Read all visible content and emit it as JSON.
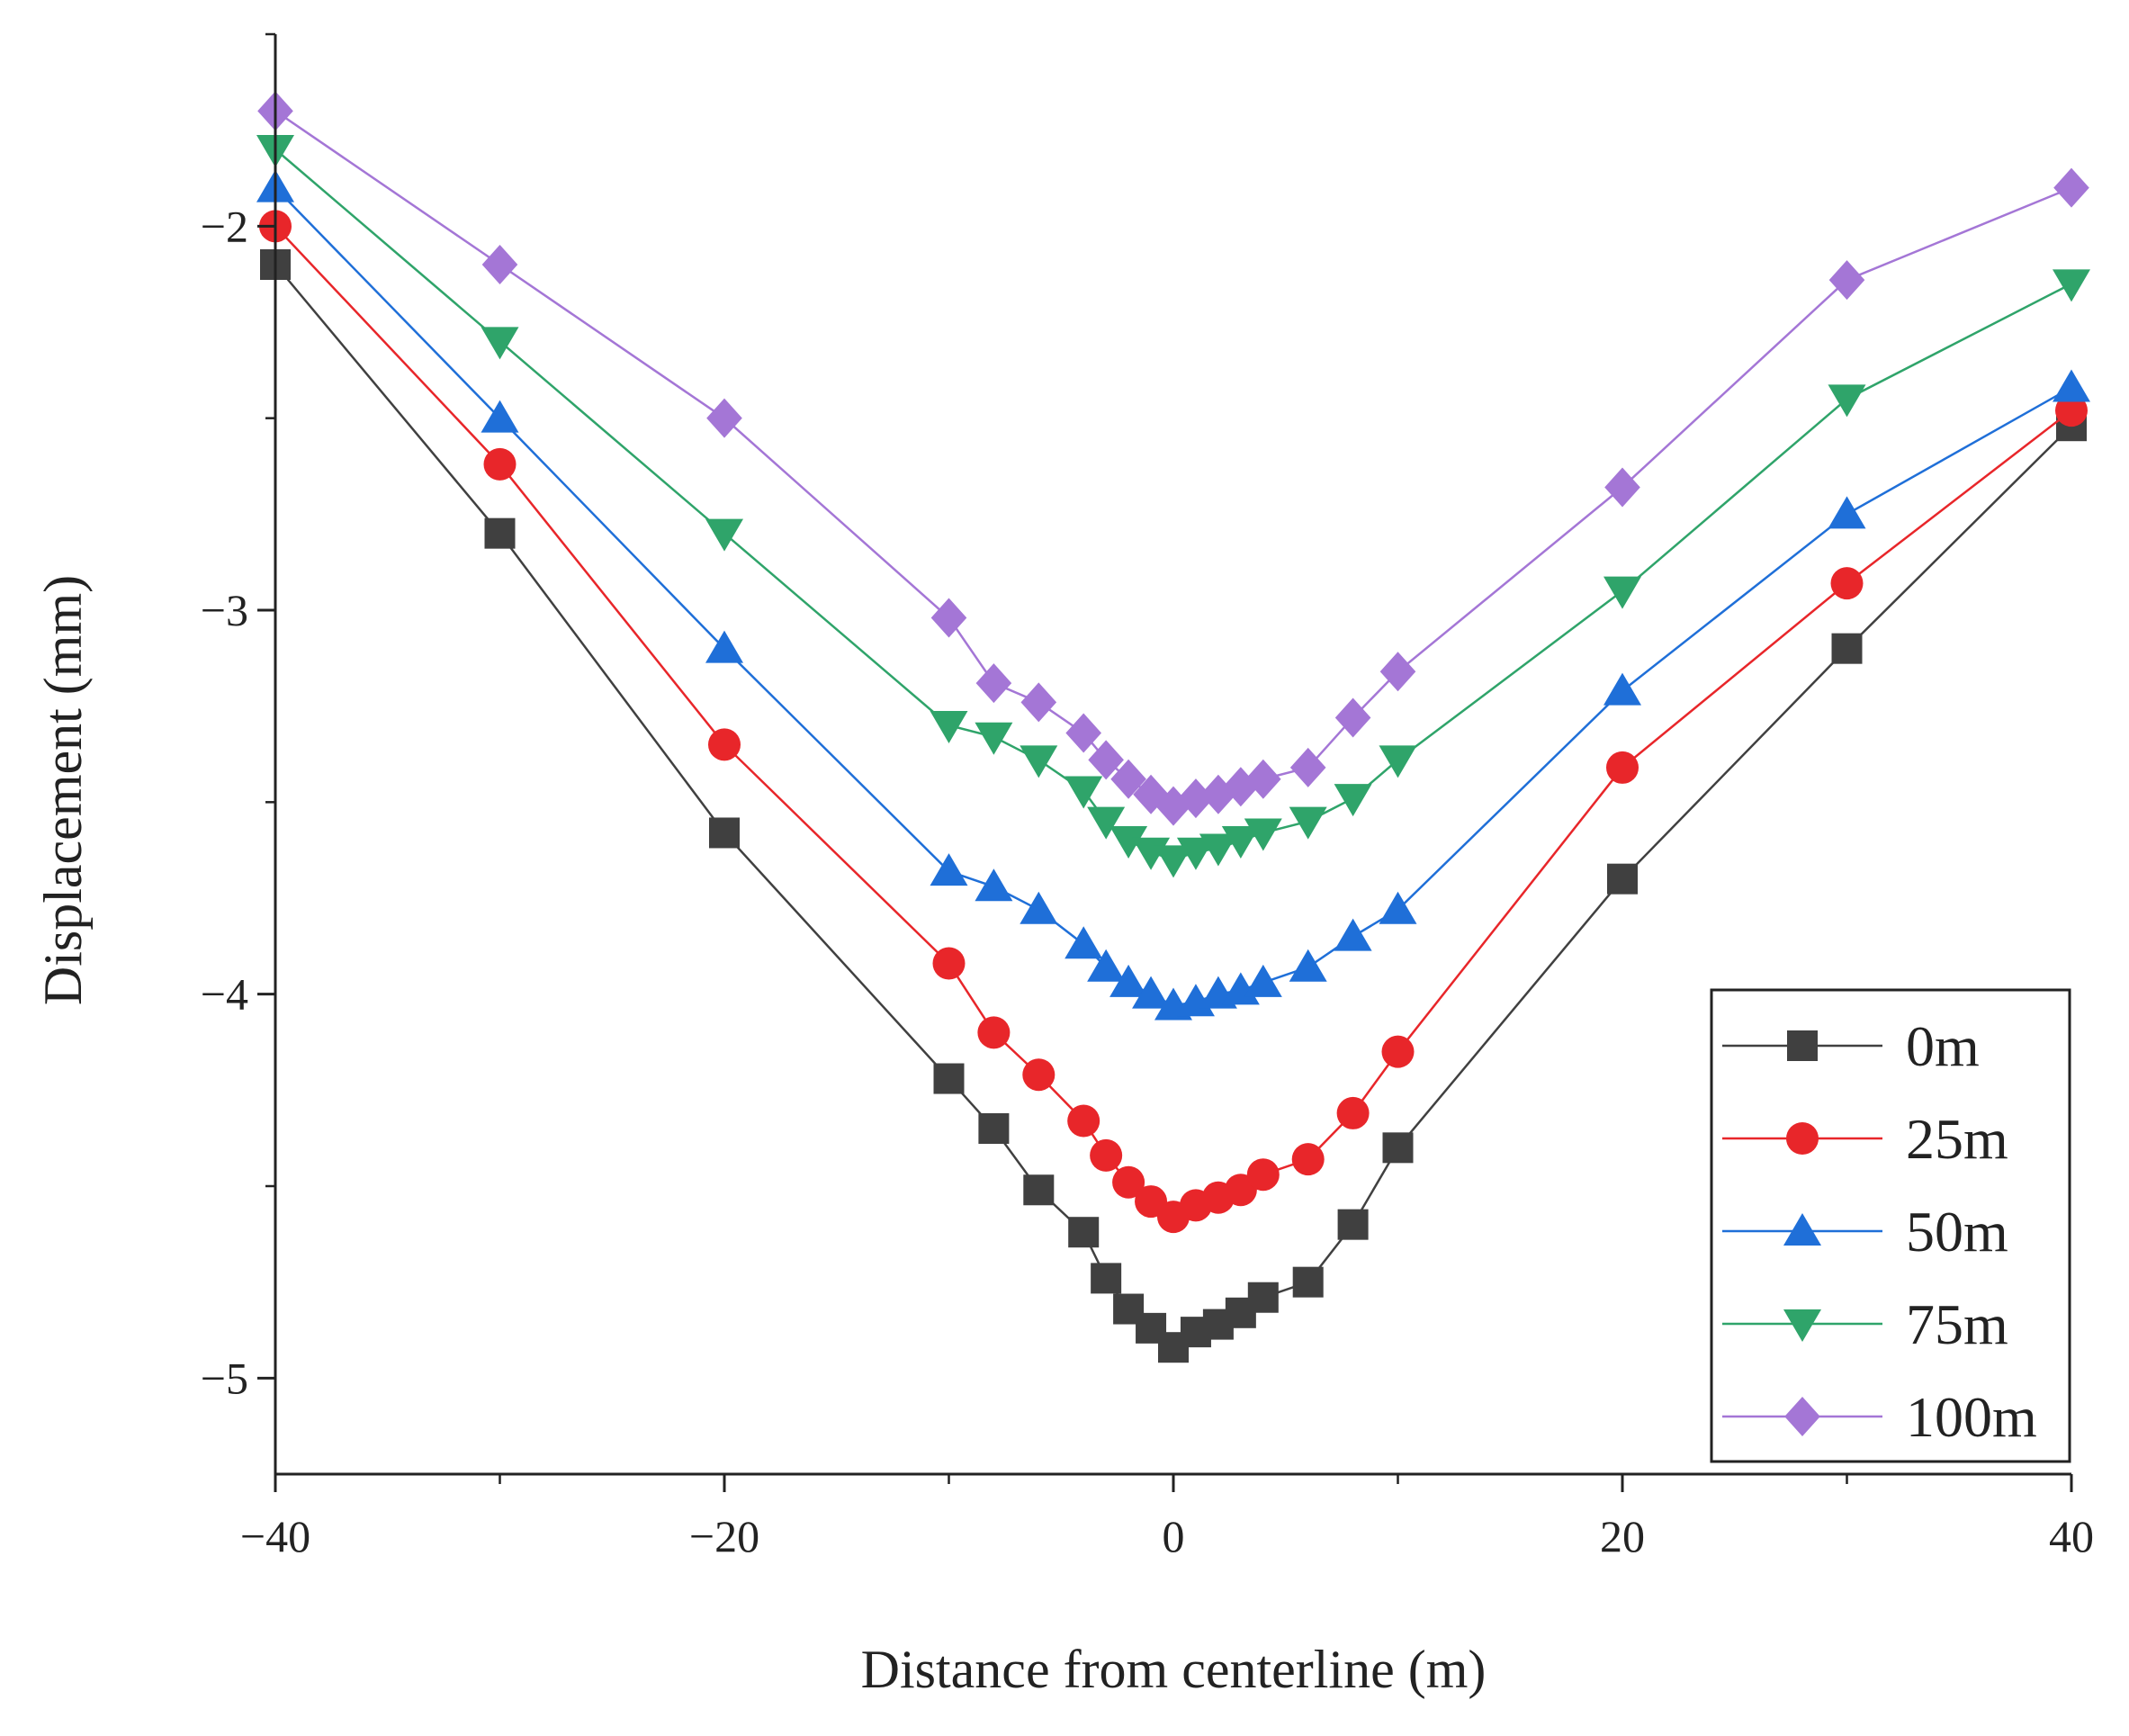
{
  "chart_data": {
    "type": "line",
    "title": "",
    "xlabel": "Distance from centerline (m)",
    "ylabel": "Displacement (mm)",
    "xlim": [
      -40,
      40
    ],
    "ylim": [
      -5.25,
      -1.5
    ],
    "xticks": [
      -40,
      -20,
      0,
      20,
      40
    ],
    "xtick_labels": [
      "−40",
      "−20",
      "0",
      "20",
      "40"
    ],
    "yticks": [
      -5,
      -4,
      -3,
      -2
    ],
    "ytick_labels": [
      "−5",
      "−4",
      "−3",
      "−2"
    ],
    "grid": false,
    "legend_position": "bottom-right",
    "x": [
      -40,
      -30,
      -20,
      -10,
      -8,
      -6,
      -4,
      -3,
      -2,
      -1,
      0,
      1,
      2,
      3,
      4,
      6,
      8,
      10,
      20,
      30,
      40
    ],
    "series": [
      {
        "name": "0m",
        "color": "#404040",
        "marker": "square",
        "values": [
          -2.1,
          -2.8,
          -3.58,
          -4.22,
          -4.35,
          -4.51,
          -4.62,
          -4.74,
          -4.82,
          -4.87,
          -4.92,
          -4.88,
          -4.86,
          -4.83,
          -4.79,
          -4.75,
          -4.6,
          -4.4,
          -3.7,
          -3.1,
          -2.52
        ]
      },
      {
        "name": "25m",
        "color": "#e8262a",
        "marker": "circle",
        "values": [
          -2.0,
          -2.62,
          -3.35,
          -3.92,
          -4.1,
          -4.21,
          -4.33,
          -4.42,
          -4.49,
          -4.54,
          -4.58,
          -4.55,
          -4.53,
          -4.51,
          -4.47,
          -4.43,
          -4.31,
          -4.15,
          -3.41,
          -2.93,
          -2.48
        ]
      },
      {
        "name": "50m",
        "color": "#1f6fd8",
        "marker": "triangle-up",
        "values": [
          -1.9,
          -2.5,
          -3.1,
          -3.68,
          -3.72,
          -3.78,
          -3.87,
          -3.93,
          -3.97,
          -4.0,
          -4.03,
          -4.02,
          -4.0,
          -3.99,
          -3.97,
          -3.93,
          -3.85,
          -3.78,
          -3.21,
          -2.75,
          -2.42
        ]
      },
      {
        "name": "75m",
        "color": "#2fa46a",
        "marker": "triangle-down",
        "values": [
          -1.8,
          -2.3,
          -2.8,
          -3.3,
          -3.33,
          -3.39,
          -3.47,
          -3.55,
          -3.6,
          -3.63,
          -3.65,
          -3.63,
          -3.62,
          -3.6,
          -3.58,
          -3.55,
          -3.49,
          -3.39,
          -2.95,
          -2.45,
          -2.15
        ]
      },
      {
        "name": "100m",
        "color": "#a476d6",
        "marker": "diamond",
        "values": [
          -1.7,
          -2.1,
          -2.5,
          -3.02,
          -3.19,
          -3.24,
          -3.32,
          -3.39,
          -3.44,
          -3.48,
          -3.51,
          -3.49,
          -3.48,
          -3.46,
          -3.44,
          -3.41,
          -3.28,
          -3.16,
          -2.68,
          -2.14,
          -1.9
        ]
      }
    ]
  }
}
